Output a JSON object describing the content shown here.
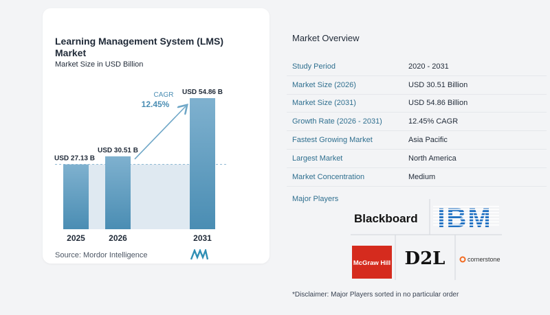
{
  "chart_data": {
    "type": "bar",
    "title": "Learning Management System (LMS) Market",
    "subtitle": "Market Size in USD Billion",
    "categories": [
      "2025",
      "2026",
      "2031"
    ],
    "values": [
      27.13,
      30.51,
      54.86
    ],
    "value_labels": [
      "USD 27.13 B",
      "USD 30.51 B",
      "USD 54.86 B"
    ],
    "cagr_label": "CAGR",
    "cagr_value": "12.45%",
    "ylim": [
      0,
      57
    ],
    "colors": {
      "bar_light": "#7fb1cf",
      "bar_dark": "#4a8db3",
      "band": "#dfe9f1",
      "arrow": "#6fa7c7",
      "dashed": "#8fb9d3"
    }
  },
  "source": "Source:  Mordor Intelligence",
  "overview": {
    "title": "Market Overview",
    "rows": [
      {
        "label": "Study Period",
        "value": "2020 - 2031"
      },
      {
        "label": "Market Size (2026)",
        "value": "USD 30.51 Billion"
      },
      {
        "label": "Market Size (2031)",
        "value": "USD 54.86 Billion"
      },
      {
        "label": "Growth Rate (2026 - 2031)",
        "value": "12.45% CAGR"
      },
      {
        "label": "Fastest Growing Market",
        "value": "Asia Pacific"
      },
      {
        "label": "Largest Market",
        "value": "North America"
      },
      {
        "label": "Market Concentration",
        "value": "Medium"
      }
    ],
    "players_title": "Major Players",
    "players": [
      "Blackboard",
      "IBM",
      "McGraw Hill",
      "D2L",
      "cornerstone"
    ],
    "disclaimer": "*Disclaimer: Major Players sorted in no particular order"
  }
}
